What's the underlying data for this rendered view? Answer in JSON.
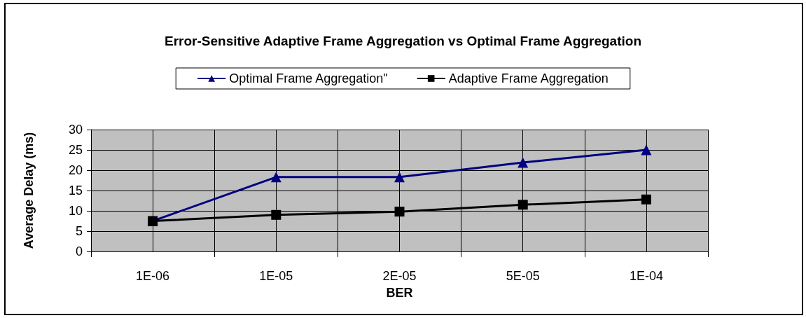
{
  "chart_data": {
    "type": "line",
    "title": "Error-Sensitive Adaptive Frame Aggregation vs Optimal Frame Aggregation",
    "xlabel": "BER",
    "ylabel": "Average Delay (ms)",
    "categories": [
      "1E-06",
      "1E-05",
      "2E-05",
      "5E-05",
      "1E-04"
    ],
    "series": [
      {
        "name": "Optimal Frame Aggregation\"",
        "color": "#000080",
        "marker": "triangle",
        "values": [
          7.5,
          18.3,
          18.3,
          21.9,
          25
        ]
      },
      {
        "name": "Adaptive Frame Aggregation",
        "color": "#000000",
        "marker": "square",
        "values": [
          7.5,
          9,
          9.8,
          11.5,
          12.8
        ]
      }
    ],
    "ylim": [
      0,
      30
    ],
    "yticks": [
      0,
      5,
      10,
      15,
      20,
      25,
      30
    ],
    "grid": true,
    "legend": "top",
    "line_style": "solid"
  }
}
